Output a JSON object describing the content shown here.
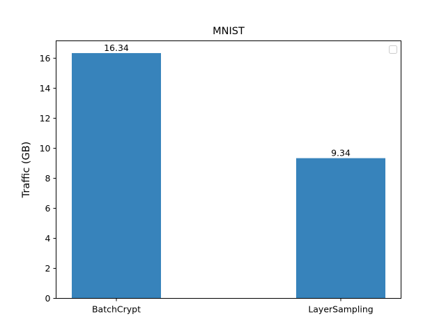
{
  "chart_data": {
    "type": "bar",
    "title": "MNIST",
    "xlabel": "",
    "ylabel": "Traffic (GB)",
    "categories": [
      "BatchCrypt",
      "LayerSampling"
    ],
    "values": [
      16.34,
      9.34
    ],
    "data_labels": [
      "16.34",
      "9.34"
    ],
    "ylim": [
      0,
      17.157
    ],
    "yticks": [
      0,
      2,
      4,
      6,
      8,
      10,
      12,
      14,
      16
    ],
    "grid": false,
    "legend": {
      "placement": "top-right",
      "entries": []
    },
    "colors": {
      "bar": "#3783bb"
    }
  }
}
